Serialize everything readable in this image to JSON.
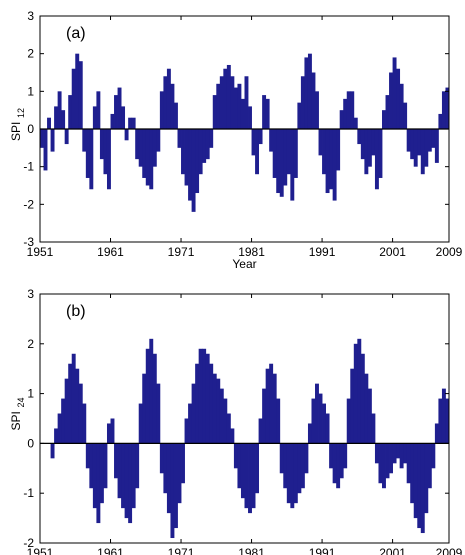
{
  "chart_data": [
    {
      "type": "bar",
      "panel_label": "(a)",
      "xlabel": "Year",
      "ylabel_main": "SPI",
      "ylabel_sub": "12",
      "xlim": [
        1951,
        2009
      ],
      "ylim": [
        -3,
        3
      ],
      "x_ticks": [
        "1951",
        "1961",
        "1971",
        "1981",
        "1991",
        "2001",
        "2009"
      ],
      "y_ticks": [
        "-3",
        "-2",
        "-1",
        "0",
        "1",
        "2",
        "3"
      ],
      "grid": false,
      "color": "#1f1f8f",
      "series": [
        {
          "x_start": 1951.0,
          "x_step": 0.5,
          "values": [
            -0.5,
            -1.1,
            0.3,
            -0.6,
            0.6,
            1.0,
            0.5,
            -0.4,
            0.9,
            1.6,
            2.0,
            1.8,
            -0.6,
            -1.3,
            -1.6,
            0.6,
            1.0,
            -0.8,
            -1.2,
            -1.6,
            0.4,
            0.9,
            1.1,
            0.6,
            -0.3,
            0.3,
            0.3,
            -0.8,
            -1.0,
            -1.3,
            -1.5,
            -1.6,
            -1.0,
            -0.6,
            1.0,
            1.4,
            1.6,
            1.2,
            0.7,
            -0.5,
            -1.2,
            -1.5,
            -1.9,
            -2.2,
            -1.7,
            -1.2,
            -0.9,
            -0.8,
            -0.5,
            0.9,
            1.2,
            1.4,
            1.6,
            1.7,
            1.4,
            1.1,
            1.2,
            0.8,
            1.4,
            0.6,
            -0.7,
            -1.2,
            -0.4,
            0.9,
            0.8,
            -0.6,
            -1.3,
            -1.7,
            -1.8,
            -1.5,
            -1.2,
            -1.9,
            -1.3,
            0.7,
            1.4,
            1.9,
            2.0,
            1.5,
            1.0,
            -0.7,
            -1.2,
            -1.7,
            -1.6,
            -1.9,
            -1.1,
            0.5,
            0.8,
            1.0,
            1.0,
            0.3,
            -0.4,
            -0.8,
            -1.2,
            -1.0,
            -0.7,
            -1.6,
            -1.3,
            0.5,
            0.9,
            1.5,
            1.9,
            1.6,
            1.2,
            0.7,
            -0.6,
            -0.8,
            -1.0,
            -0.7,
            -1.2,
            -1.0,
            -0.6,
            -0.5,
            -0.9,
            0.4,
            1.0,
            1.1,
            1.0,
            -0.6,
            -1.4,
            -1.7,
            -1.6,
            -0.9,
            -0.6,
            -1.2,
            -1.7,
            -2.0,
            -1.6,
            -1.3,
            0.5,
            1.0,
            1.2,
            1.3,
            0.8,
            -0.8,
            -1.5,
            -1.7,
            -1.3,
            -0.9,
            0.5,
            0.8,
            1.3,
            2.2,
            2.6,
            2.8,
            2.4,
            1.2,
            -1.1,
            -1.5,
            -1.3,
            0.3,
            0.4,
            0.3,
            -0.9,
            0.7
          ]
        }
      ]
    },
    {
      "type": "bar",
      "panel_label": "(b)",
      "xlabel": "Year",
      "ylabel_main": "SPI",
      "ylabel_sub": "24",
      "xlim": [
        1951,
        2009
      ],
      "ylim": [
        -2,
        3
      ],
      "x_ticks": [
        "1951",
        "1961",
        "1971",
        "1981",
        "1991",
        "2001",
        "2009"
      ],
      "y_ticks": [
        "-2",
        "-1",
        "0",
        "1",
        "2",
        "3"
      ],
      "grid": false,
      "color": "#1f1f8f",
      "series": [
        {
          "x_start": 1951.0,
          "x_step": 0.5,
          "values": [
            0.0,
            0.0,
            0.0,
            -0.3,
            0.3,
            0.6,
            0.9,
            1.3,
            1.6,
            1.8,
            1.5,
            1.2,
            0.8,
            -0.5,
            -0.9,
            -1.3,
            -1.6,
            -1.2,
            -0.9,
            0.4,
            0.5,
            -0.7,
            -1.1,
            -1.3,
            -1.5,
            -1.6,
            -1.3,
            -0.9,
            0.8,
            1.4,
            1.9,
            2.1,
            1.8,
            1.2,
            -0.6,
            -1.0,
            -1.4,
            -1.9,
            -1.7,
            -1.2,
            -0.8,
            0.5,
            0.8,
            1.2,
            1.6,
            1.9,
            1.9,
            1.8,
            1.6,
            1.4,
            1.3,
            1.1,
            0.9,
            0.6,
            0.3,
            -0.5,
            -0.9,
            -1.1,
            -1.3,
            -1.4,
            -1.3,
            -1.0,
            0.5,
            1.1,
            1.5,
            1.6,
            1.4,
            0.9,
            -0.6,
            -0.9,
            -1.2,
            -1.3,
            -1.2,
            -1.0,
            -0.9,
            -0.6,
            0.4,
            0.9,
            1.2,
            1.0,
            0.8,
            0.6,
            -0.5,
            -0.8,
            -0.9,
            -0.7,
            -0.5,
            0.9,
            1.5,
            2.0,
            2.1,
            1.8,
            1.4,
            1.1,
            0.6,
            -0.4,
            -0.8,
            -0.9,
            -0.7,
            -0.6,
            -0.4,
            -0.3,
            -0.5,
            -0.4,
            -0.8,
            -1.2,
            -1.5,
            -1.7,
            -1.8,
            -1.4,
            -0.9,
            -0.5,
            0.4,
            0.9,
            1.1,
            0.9,
            0.5,
            -0.3,
            -0.6,
            -0.8,
            -0.6,
            -0.3,
            -0.9,
            0.7,
            1.3,
            1.8,
            2.2,
            2.5,
            2.6,
            1.8,
            1.0,
            -0.6,
            -0.9,
            -0.8,
            0.5,
            0.6,
            0.3,
            -0.5
          ]
        }
      ]
    }
  ]
}
